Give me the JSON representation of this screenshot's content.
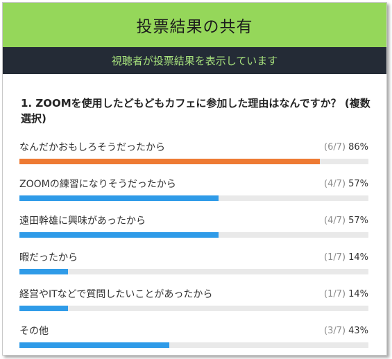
{
  "header": {
    "title": "投票結果の共有"
  },
  "banner": {
    "text": "視聴者が投票結果を表示しています"
  },
  "poll": {
    "question": "1. ZOOMを使用したどもどもカフェに参加した理由はなんですか？ (複数選択)",
    "options": [
      {
        "label": "なんだかおもしろそうだったから",
        "count": "(6/7)",
        "percent": "86%",
        "value": 0.86,
        "color": "#ee7a33"
      },
      {
        "label": "ZOOMの練習になりそうだったから",
        "count": "(4/7)",
        "percent": "57%",
        "value": 0.57,
        "color": "#2f9be8"
      },
      {
        "label": "遠田幹雄に興味があったから",
        "count": "(4/7)",
        "percent": "57%",
        "value": 0.57,
        "color": "#2f9be8"
      },
      {
        "label": "暇だったから",
        "count": "(1/7)",
        "percent": "14%",
        "value": 0.14,
        "color": "#2f9be8"
      },
      {
        "label": "経営やITなどで質問したいことがあったから",
        "count": "(1/7)",
        "percent": "14%",
        "value": 0.14,
        "color": "#2f9be8"
      },
      {
        "label": "その他",
        "count": "(3/7)",
        "percent": "43%",
        "value": 0.43,
        "color": "#2f9be8"
      }
    ]
  }
}
